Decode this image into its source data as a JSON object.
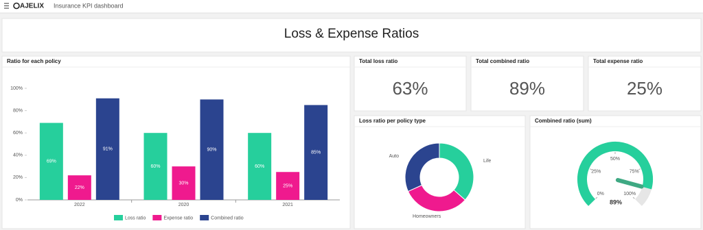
{
  "header": {
    "logo": "AJELIX",
    "app_title": "Insurance KPI dashboard"
  },
  "page_title": "Loss & Expense Ratios",
  "bar_chart": {
    "type": "bar",
    "title": "Ratio for each policy",
    "categories": [
      "2022",
      "2020",
      "2021"
    ],
    "series": [
      {
        "name": "Loss ratio",
        "color": "#26cf9c",
        "values": [
          69,
          60,
          60
        ],
        "value_labels": [
          "69%",
          "60%",
          "60%"
        ]
      },
      {
        "name": "Expense ratio",
        "color": "#ef1a8e",
        "values": [
          22,
          30,
          25
        ],
        "value_labels": [
          "22%",
          "30%",
          "25%"
        ]
      },
      {
        "name": "Combined ratio",
        "color": "#2b448f",
        "values": [
          91,
          90,
          85
        ],
        "value_labels": [
          "91%",
          "90%",
          "85%"
        ]
      }
    ],
    "ylim": [
      0,
      100
    ],
    "yticks": [
      {
        "value": 0,
        "label": "0%"
      },
      {
        "value": 20,
        "label": "20%"
      },
      {
        "value": 40,
        "label": "40%"
      },
      {
        "value": 60,
        "label": "60%"
      },
      {
        "value": 80,
        "label": "80%"
      },
      {
        "value": 100,
        "label": "100%"
      }
    ],
    "legend": "bottom"
  },
  "kpis": [
    {
      "title": "Total loss ratio",
      "value": 63,
      "value_label": "63%"
    },
    {
      "title": "Total combined ratio",
      "value": 89,
      "value_label": "89%"
    },
    {
      "title": "Total expense ratio",
      "value": 25,
      "value_label": "25%"
    }
  ],
  "donut_chart": {
    "type": "pie",
    "title": "Loss ratio per policy type",
    "categories": [
      "Life",
      "Homeowners",
      "Auto"
    ],
    "values": [
      69,
      60,
      60
    ],
    "colors": [
      "#26cf9c",
      "#ef1a8e",
      "#2b448f"
    ]
  },
  "gauge": {
    "type": "gauge",
    "title": "Combined ratio (sum)",
    "value": 89,
    "value_label": "89%",
    "range": [
      0,
      100
    ],
    "color": "#26cf9c",
    "ticks": [
      {
        "value": 0,
        "label": "0%"
      },
      {
        "value": 25,
        "label": "25%"
      },
      {
        "value": 50,
        "label": "50%"
      },
      {
        "value": 75,
        "label": "75%"
      },
      {
        "value": 100,
        "label": "100%"
      }
    ]
  }
}
